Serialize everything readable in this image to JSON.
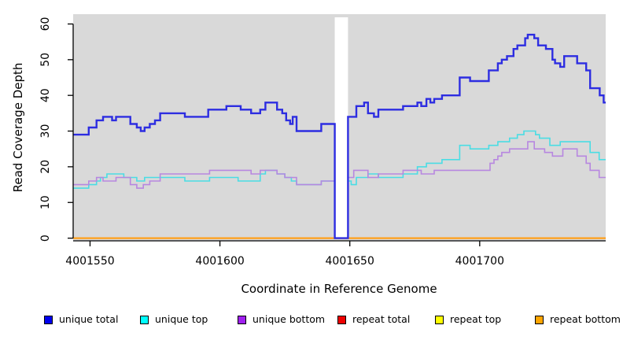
{
  "page": {
    "background": "#ffffff"
  },
  "chart_data": {
    "type": "line",
    "step": true,
    "title": "",
    "xlabel": "Coordinate in Reference Genome",
    "ylabel": "Read Coverage Depth",
    "x_domain": [
      4001543.5,
      4001748.5
    ],
    "ylim": [
      -0.75,
      62.75
    ],
    "x_ticks": [
      4001550,
      4001600,
      4001650,
      4001700
    ],
    "y_ticks": [
      0,
      10,
      20,
      30,
      40,
      50,
      60
    ],
    "grid": false,
    "plot_bg": "#d9d9d9",
    "gap_region": {
      "from": 4001644.2,
      "to": 4001649.3
    },
    "legend_position": "bottom",
    "series": [
      {
        "name": "repeat total",
        "line_color": "#dd0000",
        "width": 1.6,
        "points": [
          [
            4001543.5,
            0
          ]
        ]
      },
      {
        "name": "repeat top",
        "line_color": "#f5e800",
        "width": 1.6,
        "points": [
          [
            4001543.5,
            0
          ]
        ]
      },
      {
        "name": "repeat bottom",
        "line_color": "#ff9f1a",
        "width": 2.2,
        "points": [
          [
            4001543.5,
            0
          ]
        ]
      },
      {
        "name": "unique top",
        "line_color": "#4adde4",
        "width": 1.6,
        "points": [
          [
            4001543.5,
            14
          ],
          [
            4001549.5,
            15
          ],
          [
            4001552.5,
            16
          ],
          [
            4001554,
            17
          ],
          [
            4001556.5,
            18
          ],
          [
            4001563,
            17
          ],
          [
            4001568,
            16
          ],
          [
            4001571,
            17
          ],
          [
            4001586.5,
            16
          ],
          [
            4001596,
            17
          ],
          [
            4001607,
            16
          ],
          [
            4001615.5,
            18
          ],
          [
            4001617.5,
            19
          ],
          [
            4001622,
            18
          ],
          [
            4001625,
            17
          ],
          [
            4001627.5,
            16
          ],
          [
            4001629.5,
            15
          ],
          [
            4001639,
            16
          ],
          [
            4001644.2,
            0
          ],
          [
            4001649.3,
            16
          ],
          [
            4001650.5,
            15
          ],
          [
            4001652.5,
            17
          ],
          [
            4001657,
            18
          ],
          [
            4001661,
            17
          ],
          [
            4001670.5,
            18
          ],
          [
            4001676,
            20
          ],
          [
            4001679.5,
            21
          ],
          [
            4001685.5,
            22
          ],
          [
            4001692.3,
            26
          ],
          [
            4001696.3,
            25
          ],
          [
            4001703.5,
            26
          ],
          [
            4001707,
            27
          ],
          [
            4001711.5,
            28
          ],
          [
            4001714.5,
            29
          ],
          [
            4001717,
            30
          ],
          [
            4001721.5,
            29
          ],
          [
            4001723,
            28
          ],
          [
            4001727,
            26
          ],
          [
            4001731,
            27
          ],
          [
            4001742.5,
            24
          ],
          [
            4001746,
            22
          ]
        ]
      },
      {
        "name": "unique bottom",
        "line_color": "#b787e0",
        "width": 1.6,
        "points": [
          [
            4001543.5,
            15
          ],
          [
            4001549.5,
            16
          ],
          [
            4001552.5,
            17
          ],
          [
            4001555,
            16
          ],
          [
            4001560,
            17
          ],
          [
            4001565.5,
            15
          ],
          [
            4001568,
            14
          ],
          [
            4001570.5,
            15
          ],
          [
            4001573,
            16
          ],
          [
            4001577,
            18
          ],
          [
            4001596,
            19
          ],
          [
            4001612,
            18
          ],
          [
            4001615.5,
            19
          ],
          [
            4001622,
            18
          ],
          [
            4001625,
            17
          ],
          [
            4001629.5,
            15
          ],
          [
            4001639,
            16
          ],
          [
            4001644.2,
            0
          ],
          [
            4001649.3,
            17
          ],
          [
            4001651.5,
            19
          ],
          [
            4001657,
            17
          ],
          [
            4001661,
            18
          ],
          [
            4001670.5,
            19
          ],
          [
            4001677.5,
            18
          ],
          [
            4001682.5,
            19
          ],
          [
            4001704,
            21
          ],
          [
            4001705.5,
            22
          ],
          [
            4001707,
            23
          ],
          [
            4001708.5,
            24
          ],
          [
            4001711.5,
            25
          ],
          [
            4001718.5,
            27
          ],
          [
            4001721,
            25
          ],
          [
            4001725,
            24
          ],
          [
            4001728,
            23
          ],
          [
            4001732,
            25
          ],
          [
            4001737.5,
            23
          ],
          [
            4001741,
            21
          ],
          [
            4001742.5,
            19
          ],
          [
            4001746,
            17
          ]
        ]
      },
      {
        "name": "unique total",
        "line_color": "#2d2de1",
        "width": 2.4,
        "points": [
          [
            4001543.5,
            29
          ],
          [
            4001549.5,
            31
          ],
          [
            4001552.5,
            33
          ],
          [
            4001555,
            34
          ],
          [
            4001558.5,
            33
          ],
          [
            4001560,
            34
          ],
          [
            4001565.5,
            32
          ],
          [
            4001568,
            31
          ],
          [
            4001569.5,
            30
          ],
          [
            4001571,
            31
          ],
          [
            4001573,
            32
          ],
          [
            4001575,
            33
          ],
          [
            4001577,
            35
          ],
          [
            4001586.5,
            34
          ],
          [
            4001595.5,
            36
          ],
          [
            4001602.5,
            37
          ],
          [
            4001608,
            36
          ],
          [
            4001612,
            35
          ],
          [
            4001615.5,
            36
          ],
          [
            4001617.5,
            38
          ],
          [
            4001622,
            36
          ],
          [
            4001624,
            35
          ],
          [
            4001625.5,
            33
          ],
          [
            4001627,
            32
          ],
          [
            4001628,
            34
          ],
          [
            4001629.5,
            30
          ],
          [
            4001639,
            32
          ],
          [
            4001644.2,
            0
          ],
          [
            4001649.3,
            34
          ],
          [
            4001652.5,
            37
          ],
          [
            4001655.5,
            38
          ],
          [
            4001657,
            35
          ],
          [
            4001659.3,
            34
          ],
          [
            4001661,
            36
          ],
          [
            4001670.5,
            37
          ],
          [
            4001676,
            38
          ],
          [
            4001677.5,
            37
          ],
          [
            4001679.5,
            39
          ],
          [
            4001681,
            38
          ],
          [
            4001682.5,
            39
          ],
          [
            4001685.5,
            40
          ],
          [
            4001692.3,
            45
          ],
          [
            4001696.3,
            44
          ],
          [
            4001703.5,
            47
          ],
          [
            4001707,
            49
          ],
          [
            4001708.5,
            50
          ],
          [
            4001710.5,
            51
          ],
          [
            4001713,
            53
          ],
          [
            4001714.5,
            54
          ],
          [
            4001717.5,
            56
          ],
          [
            4001718.5,
            57
          ],
          [
            4001721,
            56
          ],
          [
            4001722.5,
            54
          ],
          [
            4001725.5,
            53
          ],
          [
            4001728,
            50
          ],
          [
            4001729,
            49
          ],
          [
            4001731,
            48
          ],
          [
            4001732.5,
            51
          ],
          [
            4001737.5,
            49
          ],
          [
            4001741,
            47
          ],
          [
            4001742.5,
            42
          ],
          [
            4001746.2,
            40
          ],
          [
            4001747.7,
            38
          ]
        ]
      }
    ]
  },
  "legend": {
    "items": [
      {
        "label": "unique total",
        "color": "#0000ee"
      },
      {
        "label": "unique top",
        "color": "#00ffff"
      },
      {
        "label": "unique bottom",
        "color": "#a020f0"
      },
      {
        "label": "repeat total",
        "color": "#ee0000"
      },
      {
        "label": "repeat top",
        "color": "#ffff00"
      },
      {
        "label": "repeat bottom",
        "color": "#ffa500"
      }
    ]
  }
}
